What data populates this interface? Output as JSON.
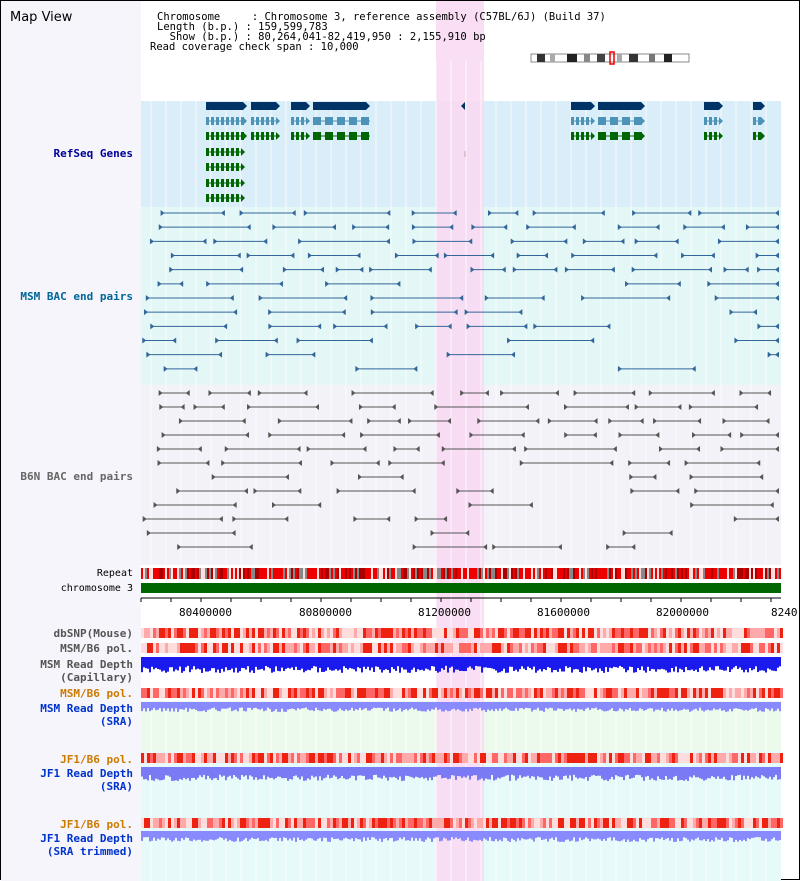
{
  "header": {
    "title": "Map View",
    "chromosome_line": "Chromosome     : Chromosome 3, reference assembly (C57BL/6J) (Build 37)",
    "length_line": "Length (b.p.) : 159,599,783",
    "show_line": "  Show (b.p.) : 80,264,041-82,419,950 : 2,155,910 bp",
    "coverage_line": "Read coverage check span : 10,000"
  },
  "tracks": {
    "refseq": "RefSeq Genes",
    "msm_bac": "MSM BAC end pairs",
    "b6n_bac": "B6N BAC end pairs",
    "repeat": "Repeat",
    "chromosome": "chromosome 3",
    "dbsnp": "dbSNP(Mouse)",
    "msm_b6_pol_1": "MSM/B6 pol.",
    "msm_read_depth_cap_1": "MSM Read Depth",
    "msm_read_depth_cap_2": "(Capillary)",
    "msm_b6_pol_2": "MSM/B6 pol.",
    "msm_read_depth_sra_1": "MSM Read Depth",
    "msm_read_depth_sra_2": "(SRA)",
    "jf1_b6_pol_1": "JF1/B6 pol.",
    "jf1_read_depth_sra_1": "JF1 Read Depth",
    "jf1_read_depth_sra_2": "(SRA)",
    "jf1_b6_pol_2": "JF1/B6 pol.",
    "jf1_read_depth_trim_1": "JF1 Read Depth",
    "jf1_read_depth_trim_2": "(SRA trimmed)"
  },
  "axis": {
    "ticks": [
      "80400000",
      "80800000",
      "81200000",
      "81600000",
      "82000000",
      "8240"
    ]
  },
  "colors": {
    "highlight": "#f9d8f2",
    "refseq_bg": "#d9eef8",
    "gene_dark": "#003366",
    "gene_mid": "#4d93b8",
    "gene_green": "#006600",
    "msm_pair": "#336699",
    "b6n_pair": "#555555",
    "chromosome": "#006600",
    "label_navy": "#000099",
    "label_orange": "#cc7a00",
    "label_blue": "#0033cc"
  }
}
